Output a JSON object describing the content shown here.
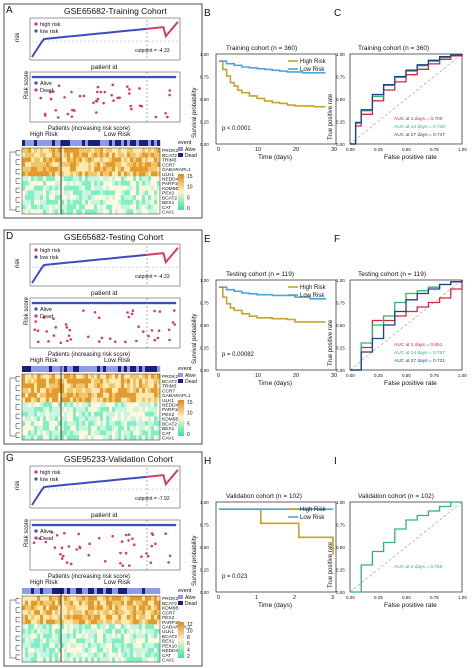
{
  "panels": {
    "A": {
      "letter": "A",
      "title": "GSE65682-Training Cohort",
      "risk_ylabel": "risk",
      "legend_high": "high risk",
      "legend_low": "low risk",
      "cutpoint": "cutpoint = -4.33",
      "patient_xlabel": "patient id",
      "risk_score_ylabel": "Risk score",
      "legend_alive": "Alive",
      "legend_dead": "Dead",
      "patients_xlabel": "Patients (increasing risk score)",
      "group_high": "High Risk",
      "group_low": "Low Risk",
      "event_label": "event",
      "event_alive": "Alive",
      "event_dead": "Dead",
      "genes": [
        "PROK2",
        "BCAT2",
        "TRIM3",
        "CCR7",
        "GABARAPL1",
        "ULK1",
        "NEDD4L",
        "PARP10",
        "KDM6B",
        "PEX2",
        "BCAT2",
        "BEX1",
        "CAT",
        "CAV1"
      ],
      "scale": [
        "15",
        "10",
        "5",
        "0"
      ]
    },
    "B": {
      "letter": "B",
      "title": "Training cohort (n = 360)",
      "ylabel": "Survival probability",
      "xlabel": "Time (days)",
      "legend_high": "High Risk",
      "legend_low": "Low Risk",
      "pvalue": "p < 0.0001",
      "xticks": [
        "0",
        "10",
        "20",
        "30"
      ],
      "yticks": [
        "0.00",
        "0.25",
        "0.50",
        "0.75",
        "1.00"
      ]
    },
    "C": {
      "letter": "C",
      "title": "Training cohort (n = 360)",
      "ylabel": "True positive rate",
      "xlabel": "False positive rate",
      "auc": [
        "AUC at 1 days = 0.709",
        "AUC at 14 days = 0.740",
        "AUC at 27 days = 0.747"
      ],
      "ticks": [
        "0.00",
        "0.25",
        "0.50",
        "0.75",
        "1.00"
      ]
    },
    "D": {
      "letter": "D",
      "title": "GSE65682-Testing Cohort",
      "risk_ylabel": "risk",
      "legend_high": "high risk",
      "legend_low": "low risk",
      "cutpoint": "cutpoint = -4.33",
      "patient_xlabel": "patient id",
      "risk_score_ylabel": "Risk score",
      "legend_alive": "Alive",
      "legend_dead": "Dead",
      "patients_xlabel": "Patients (increasing risk score)",
      "group_high": "High Risk",
      "group_low": "Low Risk",
      "event_label": "event",
      "event_alive": "Alive",
      "event_dead": "Dead",
      "genes": [
        "PROK2",
        "BCAT2",
        "TRIM3",
        "CCR7",
        "GABARAPL1",
        "ULK1",
        "NEDD4L",
        "PARP10",
        "PEX2",
        "KDM6B",
        "BCAT2",
        "BEX1",
        "CAT",
        "CAV1"
      ],
      "scale": [
        "15",
        "10",
        "5",
        "0"
      ]
    },
    "E": {
      "letter": "E",
      "title": "Testing cohort (n = 119)",
      "ylabel": "Survival probability",
      "xlabel": "Time (days)",
      "legend_high": "High Risk",
      "legend_low": "Low Risk",
      "pvalue": "p = 0.00082",
      "xticks": [
        "0",
        "10",
        "20",
        "30"
      ],
      "yticks": [
        "0.00",
        "0.25",
        "0.50",
        "0.75",
        "1.00"
      ]
    },
    "F": {
      "letter": "F",
      "title": "Testing cohort (n = 119)",
      "ylabel": "True positive rate",
      "xlabel": "False positive rate",
      "auc": [
        "AUC at 1 days = 0.651",
        "AUC at 14 days = 0.767",
        "AUC at 27 days = 0.721"
      ],
      "ticks": [
        "0.00",
        "0.25",
        "0.50",
        "0.75",
        "1.00"
      ]
    },
    "G": {
      "letter": "G",
      "title": "GSE95233-Validation Cohort",
      "risk_ylabel": "risk",
      "legend_high": "high risk",
      "legend_low": "low risk",
      "cutpoint": "cutpoint = -7.92",
      "patient_xlabel": "patient id",
      "risk_score_ylabel": "Risk score",
      "legend_alive": "Alive",
      "legend_dead": "Dead",
      "patients_xlabel": "Patients (increasing risk score)",
      "group_high": "High Risk",
      "group_low": "Low Risk",
      "event_label": "event",
      "event_alive": "Alive",
      "event_dead": "Dead",
      "genes": [
        "PROK2",
        "BCAT2",
        "KDM6B",
        "CCR7",
        "PEX2",
        "PARP10",
        "GABARAPL1",
        "ULK1",
        "BCAT2",
        "BEX1",
        "PEX10",
        "NEDD4L",
        "CAT",
        "CAV1"
      ],
      "scale": [
        "12",
        "10",
        "8",
        "6",
        "4",
        "2"
      ]
    },
    "H": {
      "letter": "H",
      "title": "Validation cohort (n = 102)",
      "ylabel": "Survival probability",
      "xlabel": "Time (days)",
      "legend_high": "High Risk",
      "legend_low": "Low Risk",
      "pvalue": "p = 0.023",
      "xticks": [
        "0",
        "1",
        "2",
        "3"
      ],
      "yticks": [
        "0.00",
        "0.25",
        "0.50",
        "0.75",
        "1.00"
      ]
    },
    "I": {
      "letter": "I",
      "title": "Validation cohort (n = 102)",
      "ylabel": "True positive rate",
      "xlabel": "False positive rate",
      "auc": [
        "AUC at 2 days = 0.758"
      ],
      "ticks": [
        "0.00",
        "0.25",
        "0.50",
        "0.75",
        "1.00"
      ]
    }
  },
  "colors": {
    "high": "#c9a227",
    "low": "#4aa6d6",
    "risk_high": "#d63a6d",
    "risk_low": "#3b4cc0",
    "roc1": "#d7263d",
    "roc2": "#2bb673",
    "roc3": "#1f3f8f",
    "roc_val": "#2bb673"
  },
  "chart_data": [
    {
      "type": "line",
      "panel": "B",
      "title": "Training cohort (n = 360)",
      "xlabel": "Time (days)",
      "ylabel": "Survival probability",
      "xlim": [
        0,
        30
      ],
      "ylim": [
        0,
        1
      ],
      "series": [
        {
          "name": "High Risk",
          "x": [
            0,
            1,
            2,
            3,
            4,
            5,
            6,
            8,
            10,
            12,
            14,
            16,
            18,
            20,
            22,
            25,
            28
          ],
          "values": [
            1.0,
            0.9,
            0.82,
            0.74,
            0.7,
            0.65,
            0.62,
            0.58,
            0.55,
            0.52,
            0.5,
            0.49,
            0.47,
            0.46,
            0.46,
            0.45,
            0.45
          ]
        },
        {
          "name": "Low Risk",
          "x": [
            0,
            2,
            4,
            6,
            8,
            10,
            12,
            14,
            16,
            18,
            20,
            22,
            25,
            28
          ],
          "values": [
            1.0,
            0.97,
            0.95,
            0.93,
            0.92,
            0.91,
            0.9,
            0.89,
            0.88,
            0.87,
            0.87,
            0.86,
            0.86,
            0.86
          ]
        }
      ]
    },
    {
      "type": "line",
      "panel": "C",
      "title": "Training cohort (n = 360)",
      "xlabel": "False positive rate",
      "ylabel": "True positive rate",
      "xlim": [
        0,
        1
      ],
      "ylim": [
        0,
        1
      ],
      "series": [
        {
          "name": "AUC at 1 days = 0.709",
          "x": [
            0,
            0.05,
            0.1,
            0.2,
            0.3,
            0.4,
            0.5,
            0.6,
            0.7,
            0.8,
            0.9,
            1
          ],
          "values": [
            0,
            0.2,
            0.33,
            0.48,
            0.6,
            0.69,
            0.77,
            0.83,
            0.89,
            0.94,
            0.98,
            1
          ]
        },
        {
          "name": "AUC at 14 days = 0.740",
          "x": [
            0,
            0.05,
            0.1,
            0.2,
            0.3,
            0.4,
            0.5,
            0.6,
            0.7,
            0.8,
            0.9,
            1
          ],
          "values": [
            0,
            0.23,
            0.37,
            0.53,
            0.65,
            0.74,
            0.81,
            0.87,
            0.92,
            0.96,
            0.99,
            1
          ]
        },
        {
          "name": "AUC at 27 days = 0.747",
          "x": [
            0,
            0.05,
            0.1,
            0.2,
            0.3,
            0.4,
            0.5,
            0.6,
            0.7,
            0.8,
            0.9,
            1
          ],
          "values": [
            0,
            0.24,
            0.38,
            0.55,
            0.66,
            0.75,
            0.82,
            0.88,
            0.93,
            0.97,
            0.99,
            1
          ]
        }
      ]
    },
    {
      "type": "line",
      "panel": "E",
      "title": "Testing cohort (n = 119)",
      "xlabel": "Time (days)",
      "ylabel": "Survival probability",
      "xlim": [
        0,
        30
      ],
      "ylim": [
        0,
        1
      ],
      "series": [
        {
          "name": "High Risk",
          "x": [
            0,
            1,
            2,
            3,
            4,
            6,
            8,
            10,
            14,
            18,
            20,
            24,
            28
          ],
          "values": [
            1.0,
            0.88,
            0.8,
            0.75,
            0.72,
            0.68,
            0.65,
            0.63,
            0.62,
            0.61,
            0.58,
            0.58,
            0.58
          ]
        },
        {
          "name": "Low Risk",
          "x": [
            0,
            2,
            4,
            6,
            8,
            10,
            14,
            18,
            20,
            24,
            28
          ],
          "values": [
            1.0,
            0.97,
            0.95,
            0.93,
            0.92,
            0.91,
            0.9,
            0.9,
            0.88,
            0.86,
            0.85
          ]
        }
      ]
    },
    {
      "type": "line",
      "panel": "F",
      "title": "Testing cohort (n = 119)",
      "xlabel": "False positive rate",
      "ylabel": "True positive rate",
      "xlim": [
        0,
        1
      ],
      "ylim": [
        0,
        1
      ],
      "series": [
        {
          "name": "AUC at 1 days = 0.651",
          "x": [
            0,
            0.1,
            0.2,
            0.3,
            0.4,
            0.5,
            0.6,
            0.7,
            0.8,
            0.9,
            1
          ],
          "values": [
            0,
            0.25,
            0.55,
            0.55,
            0.6,
            0.65,
            0.7,
            0.75,
            0.8,
            0.9,
            1
          ]
        },
        {
          "name": "AUC at 14 days = 0.767",
          "x": [
            0,
            0.1,
            0.2,
            0.3,
            0.4,
            0.5,
            0.6,
            0.7,
            0.8,
            0.9,
            1
          ],
          "values": [
            0,
            0.3,
            0.5,
            0.6,
            0.75,
            0.85,
            0.88,
            0.92,
            0.95,
            0.98,
            1
          ]
        },
        {
          "name": "AUC at 27 days = 0.721",
          "x": [
            0,
            0.1,
            0.2,
            0.3,
            0.4,
            0.5,
            0.6,
            0.7,
            0.8,
            0.9,
            1
          ],
          "values": [
            0,
            0.2,
            0.35,
            0.5,
            0.65,
            0.78,
            0.85,
            0.9,
            0.95,
            0.98,
            1
          ]
        }
      ]
    },
    {
      "type": "line",
      "panel": "H",
      "title": "Validation cohort (n = 102)",
      "xlabel": "Time (days)",
      "ylabel": "Survival probability",
      "xlim": [
        0,
        3
      ],
      "ylim": [
        0,
        1
      ],
      "series": [
        {
          "name": "High Risk",
          "x": [
            0,
            1,
            1.1,
            2,
            2.1,
            2.9,
            3
          ],
          "values": [
            1.0,
            1.0,
            0.83,
            0.83,
            0.66,
            0.66,
            0.45
          ]
        },
        {
          "name": "Low Risk",
          "x": [
            0,
            1,
            2,
            3
          ],
          "values": [
            1.0,
            1.0,
            1.0,
            1.0
          ]
        }
      ]
    },
    {
      "type": "line",
      "panel": "I",
      "title": "Validation cohort (n = 102)",
      "xlabel": "False positive rate",
      "ylabel": "True positive rate",
      "xlim": [
        0,
        1
      ],
      "ylim": [
        0,
        1
      ],
      "series": [
        {
          "name": "AUC at 2 days = 0.758",
          "x": [
            0,
            0.1,
            0.2,
            0.3,
            0.4,
            0.5,
            0.6,
            0.7,
            0.8,
            0.9,
            1
          ],
          "values": [
            0,
            0.3,
            0.45,
            0.55,
            0.7,
            0.8,
            0.85,
            0.9,
            0.95,
            1,
            1
          ]
        }
      ]
    }
  ]
}
